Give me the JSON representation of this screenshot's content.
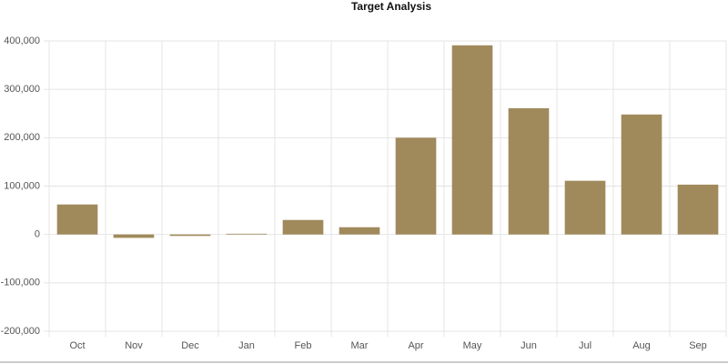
{
  "chart_data": {
    "type": "bar",
    "title": "Target Analysis",
    "categories": [
      "Oct",
      "Nov",
      "Dec",
      "Jan",
      "Feb",
      "Mar",
      "Apr",
      "May",
      "Jun",
      "Jul",
      "Aug",
      "Sep"
    ],
    "values": [
      62000,
      -7000,
      -3000,
      1500,
      30000,
      15000,
      200000,
      391000,
      261000,
      111000,
      248000,
      103000
    ],
    "color": "#a08a5c",
    "ylim": [
      -200000,
      400000
    ],
    "yticks": [
      {
        "value": -200000,
        "label": "-200,000"
      },
      {
        "value": -100000,
        "label": "-100,000"
      },
      0,
      {
        "value": 100000,
        "label": "100,000"
      },
      {
        "value": 200000,
        "label": "200,000"
      },
      {
        "value": 300000,
        "label": "300,000"
      },
      {
        "value": 400000,
        "label": "400,000"
      }
    ],
    "grid": true
  }
}
